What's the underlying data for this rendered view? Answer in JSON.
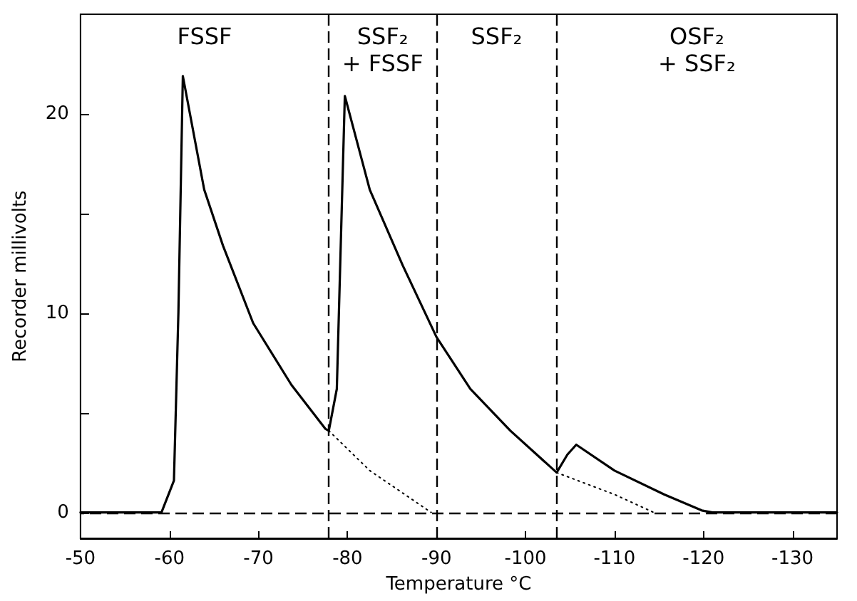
{
  "chart_data": {
    "type": "line",
    "xlabel": "Temperature °C",
    "ylabel": "Recorder millivolts",
    "xlim": [
      -50,
      -135
    ],
    "xticks": [
      -50,
      -60,
      -70,
      -80,
      -90,
      -100,
      -110,
      -120,
      -130
    ],
    "ylim": [
      -1.3,
      25
    ],
    "yticks": [
      0,
      {
        "value": 5,
        "label": null
      },
      10,
      {
        "value": 15,
        "label": null
      },
      20
    ],
    "grid": false,
    "marker": "none",
    "series": [
      {
        "color": "#000000",
        "line_style": "solid",
        "x": [
          -50,
          -59.1,
          -60.5,
          -61.0,
          -61.5,
          -63.9,
          -66.0,
          -69.4,
          -73.7,
          -77.5,
          -77.9,
          -78.8,
          -79.7,
          -82.5,
          -86.2,
          -90.0,
          -93.8,
          -98.3,
          -103.5,
          -104.7,
          -105.7,
          -110.0,
          -115.6,
          -119.8,
          -121,
          -135
        ],
        "values": [
          0,
          0,
          1.6,
          10,
          21.9,
          16.2,
          13.4,
          9.5,
          6.4,
          4.2,
          4.1,
          6.2,
          20.9,
          16.2,
          12.4,
          8.8,
          6.2,
          4.1,
          2.0,
          2.9,
          3.4,
          2.1,
          0.9,
          0.1,
          0,
          0
        ]
      },
      {
        "color": "#000000",
        "line_style": "dotted",
        "x": [
          -77.9,
          -82.5,
          -89.4
        ],
        "values": [
          4.1,
          2.1,
          0
        ]
      },
      {
        "color": "#000000",
        "line_style": "dotted",
        "x": [
          -103.5,
          -110.0,
          -114.4
        ],
        "values": [
          2.0,
          0.9,
          0
        ]
      }
    ],
    "ref_lines": [
      {
        "axis": "y",
        "value": 0,
        "line_style": "dashed",
        "color": "#000000"
      },
      {
        "axis": "x",
        "value": -77.9,
        "line_style": "dashed",
        "color": "#000000"
      },
      {
        "axis": "x",
        "value": -90,
        "line_style": "dashed",
        "color": "#000000"
      },
      {
        "axis": "x",
        "value": -103.5,
        "line_style": "dashed",
        "color": "#000000"
      }
    ],
    "annotations": [
      "FSSF",
      "SSF₂\n+ FSSF",
      "SSF₂",
      "OSF₂\n+ SSF₂"
    ]
  }
}
